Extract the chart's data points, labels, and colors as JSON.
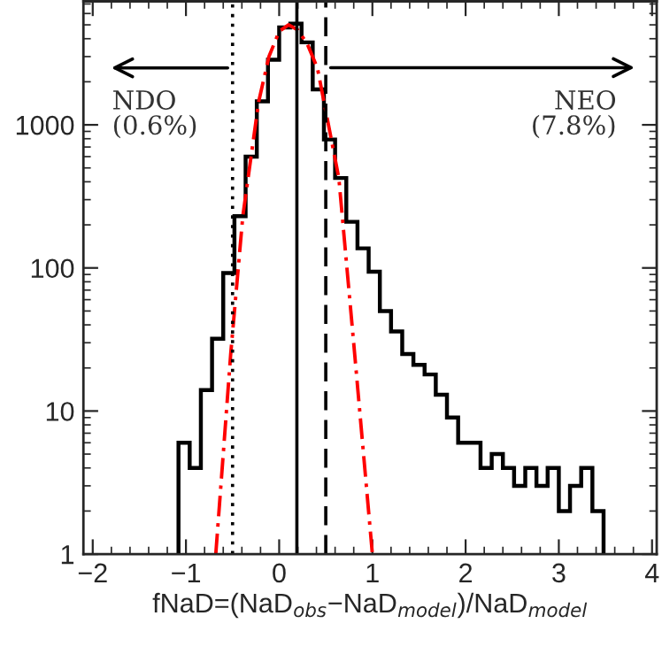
{
  "chart_data": {
    "type": "histogram",
    "xlabel": "fNaD=(NaD$_{obs}$−NaD$_{model}$)/NaD$_{model}$",
    "series": [
      {
        "color": "#000000",
        "bins": [
          -1.08,
          -0.96,
          -0.84,
          -0.72,
          -0.6,
          -0.48,
          -0.36,
          -0.24,
          -0.12,
          0.0,
          0.12,
          0.24,
          0.36,
          0.48,
          0.6,
          0.72,
          0.84,
          0.96,
          1.08,
          1.2,
          1.32,
          1.44,
          1.56,
          1.68,
          1.8,
          1.92,
          2.04,
          2.16,
          2.28,
          2.4,
          2.52,
          2.64,
          2.76,
          2.88,
          3.0,
          3.12,
          3.24,
          3.36,
          3.48
        ],
        "values": [
          6,
          4,
          14,
          32,
          92,
          230,
          600,
          1460,
          2850,
          4800,
          5100,
          3770,
          1770,
          790,
          425,
          210,
          137,
          94,
          50,
          36,
          25,
          21,
          18,
          13,
          9,
          6,
          6,
          4,
          5,
          4,
          3,
          4,
          3,
          4,
          2,
          3,
          4,
          2
        ]
      },
      {
        "type": "line",
        "color": "#ff0000",
        "line_style": "dashdot",
        "x": [
          -0.68,
          -0.52,
          -0.39,
          -0.22,
          -0.11,
          0.0,
          0.1,
          0.2,
          0.3,
          0.41,
          0.64,
          0.81,
          1.0
        ],
        "values": [
          1,
          25,
          230,
          1450,
          3000,
          4500,
          5000,
          4600,
          3700,
          2500,
          425,
          25,
          1
        ]
      }
    ],
    "ref_lines": [
      {
        "axis": "x",
        "value": 0.19,
        "color": "#000000",
        "line_style": "solid"
      },
      {
        "axis": "x",
        "value": -0.5,
        "color": "#000000",
        "line_style": "dotted"
      },
      {
        "axis": "x",
        "value": 0.5,
        "color": "#000000",
        "line_style": "dashed"
      }
    ],
    "annotations": [
      {
        "text": "NDO\n(0.6%)",
        "x": -0.5,
        "y": 2500
      },
      "NEO\n(7.8%)"
    ],
    "log": "y",
    "xlim": [
      -2.1,
      4.05
    ],
    "ylim": [
      1,
      7300
    ],
    "xticks": [
      -2,
      -1,
      0,
      1,
      2,
      3,
      4
    ],
    "yticks": [
      1,
      10,
      100,
      1000
    ],
    "grid": false
  }
}
